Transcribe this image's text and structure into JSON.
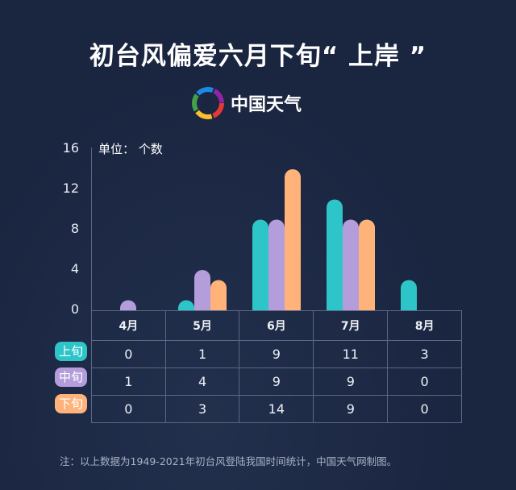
{
  "title": "初台风偏爱六月下旬“ 上岸 ”",
  "logo": {
    "text": "中国天气"
  },
  "footnote": "注：以上数据为1949-2021年初台风登陆我国时间统计，中国天气网制图。",
  "chart_data": {
    "type": "bar",
    "unit_label": "单位：  个数",
    "categories": [
      "4月",
      "5月",
      "6月",
      "7月",
      "8月"
    ],
    "yticks": [
      "0",
      "4",
      "8",
      "12",
      "16"
    ],
    "ylim": [
      0,
      16
    ],
    "grid": false,
    "legend": "left-of-table",
    "series": [
      {
        "name": "上旬",
        "color": "#2ec5c8",
        "values": [
          0,
          1,
          9,
          11,
          3
        ]
      },
      {
        "name": "中旬",
        "color": "#b39ddb",
        "values": [
          1,
          4,
          9,
          9,
          0
        ]
      },
      {
        "name": "下旬",
        "color": "#ffb27a",
        "values": [
          0,
          3,
          14,
          9,
          0
        ]
      }
    ]
  }
}
